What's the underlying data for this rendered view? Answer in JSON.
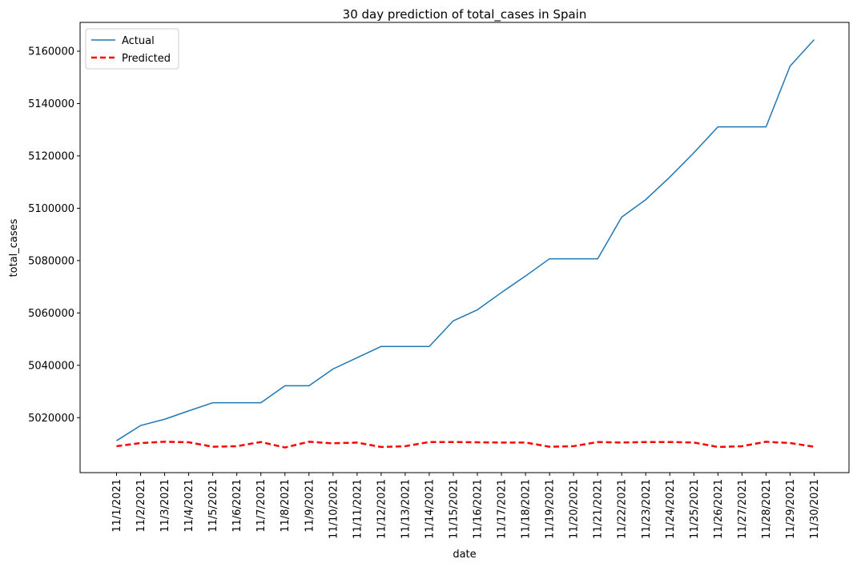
{
  "chart_data": {
    "type": "line",
    "title": "30 day prediction of total_cases in Spain",
    "xlabel": "date",
    "ylabel": "total_cases",
    "categories": [
      "11/1/2021",
      "11/2/2021",
      "11/3/2021",
      "11/4/2021",
      "11/5/2021",
      "11/6/2021",
      "11/7/2021",
      "11/8/2021",
      "11/9/2021",
      "11/10/2021",
      "11/11/2021",
      "11/12/2021",
      "11/13/2021",
      "11/14/2021",
      "11/15/2021",
      "11/16/2021",
      "11/17/2021",
      "11/18/2021",
      "11/19/2021",
      "11/20/2021",
      "11/21/2021",
      "11/22/2021",
      "11/23/2021",
      "11/24/2021",
      "11/25/2021",
      "11/26/2021",
      "11/27/2021",
      "11/28/2021",
      "11/29/2021",
      "11/30/2021"
    ],
    "yticks": [
      5020000,
      5040000,
      5060000,
      5080000,
      5100000,
      5120000,
      5140000,
      5160000
    ],
    "ylim": [
      4999000,
      5171000
    ],
    "grid": false,
    "legend_position": "top-left",
    "series": [
      {
        "name": "Actual",
        "color": "#1f77b4",
        "style": "solid",
        "values": [
          5011200,
          5017000,
          5019400,
          5022600,
          5025700,
          5025700,
          5025700,
          5032200,
          5032200,
          5038600,
          5042900,
          5047200,
          5047200,
          5047200,
          5057000,
          5061200,
          5067800,
          5074100,
          5080700,
          5080700,
          5080700,
          5096600,
          5103300,
          5111900,
          5121200,
          5131100,
          5131100,
          5131100,
          5154300,
          5164400
        ]
      },
      {
        "name": "Predicted",
        "color": "#ff0000",
        "style": "dashed",
        "values": [
          5009100,
          5010300,
          5010800,
          5010600,
          5008900,
          5009100,
          5010700,
          5008600,
          5010800,
          5010200,
          5010500,
          5008800,
          5009100,
          5010700,
          5010700,
          5010600,
          5010500,
          5010500,
          5008900,
          5009100,
          5010700,
          5010500,
          5010700,
          5010700,
          5010500,
          5008800,
          5009100,
          5010800,
          5010300,
          5008900
        ]
      }
    ]
  }
}
